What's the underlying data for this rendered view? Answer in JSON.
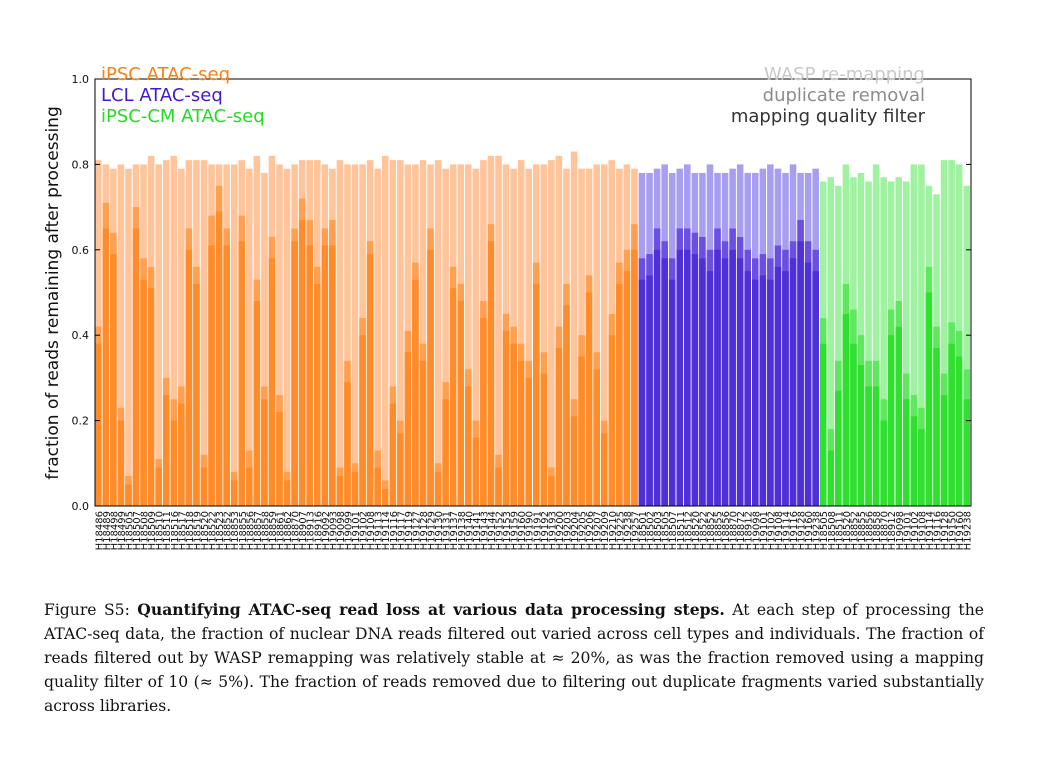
{
  "chart_data": {
    "type": "bar",
    "stacked_layers": [
      "mapping quality filter",
      "duplicate removal",
      "WASP re-mapping"
    ],
    "ylabel": "fraction of reads remaining after processing",
    "ylim": [
      0,
      1.0
    ],
    "yticks": [
      "0.0",
      "0.2",
      "0.4",
      "0.6",
      "0.8",
      "1.0"
    ],
    "grid": false,
    "legend_groups": [
      {
        "label": "iPSC ATAC-seq",
        "color": "#ff7f0e"
      },
      {
        "label": "LCL ATAC-seq",
        "color": "#3f1ccc"
      },
      {
        "label": "iPSC-CM ATAC-seq",
        "color": "#22dd22"
      }
    ],
    "legend_steps": [
      {
        "label": "WASP re-mapping",
        "color": "#c8c8c8"
      },
      {
        "label": "duplicate removal",
        "color": "#8c8c8c"
      },
      {
        "label": "mapping quality filter",
        "color": "#333333"
      }
    ],
    "groups": [
      {
        "name": "iPSC ATAC-seq",
        "colors": [
          "#ff8c2a",
          "#ff9f50",
          "#ffc49a"
        ],
        "categories": [
          "H18486",
          "H18489",
          "H18498",
          "H18499",
          "H18505",
          "H18507",
          "H18508",
          "H18509",
          "H18510",
          "H18511",
          "H18516",
          "H18517",
          "H18518",
          "H18519",
          "H18520",
          "H18522",
          "H18523",
          "H18852",
          "H18853",
          "H18855",
          "H18856",
          "H18857",
          "H18858",
          "H18859",
          "H18861",
          "H18862",
          "H18870",
          "H18907",
          "H18913",
          "H18916",
          "H19092",
          "H19093",
          "H19098",
          "H19099",
          "H19101",
          "H19102",
          "H19108",
          "H19113",
          "H19114",
          "H19116",
          "H19117",
          "H19119",
          "H19127",
          "H19128",
          "H19129",
          "H19130",
          "H19131",
          "H19137",
          "H19138",
          "H19140",
          "H19141",
          "H19143",
          "H19144",
          "H19152",
          "H19153",
          "H19159",
          "H19160",
          "H19190",
          "H19191",
          "H19192",
          "H19193",
          "H19200",
          "H19203",
          "H19204",
          "H19205",
          "H19206",
          "H19207",
          "H19209",
          "H19210",
          "H19225",
          "H19238",
          "H19257"
        ],
        "wasp": [
          0.81,
          0.8,
          0.79,
          0.8,
          0.79,
          0.8,
          0.8,
          0.82,
          0.8,
          0.81,
          0.82,
          0.79,
          0.81,
          0.81,
          0.81,
          0.8,
          0.8,
          0.8,
          0.8,
          0.81,
          0.79,
          0.82,
          0.78,
          0.82,
          0.8,
          0.79,
          0.8,
          0.81,
          0.81,
          0.81,
          0.8,
          0.79,
          0.81,
          0.8,
          0.8,
          0.8,
          0.81,
          0.79,
          0.82,
          0.81,
          0.81,
          0.8,
          0.8,
          0.81,
          0.8,
          0.81,
          0.79,
          0.8,
          0.8,
          0.8,
          0.79,
          0.81,
          0.82,
          0.82,
          0.8,
          0.79,
          0.81,
          0.79,
          0.8,
          0.8,
          0.81,
          0.82,
          0.79,
          0.83,
          0.79,
          0.79,
          0.8,
          0.8,
          0.81,
          0.79,
          0.8,
          0.79
        ],
        "dup": [
          0.42,
          0.71,
          0.64,
          0.23,
          0.07,
          0.7,
          0.58,
          0.56,
          0.11,
          0.3,
          0.25,
          0.28,
          0.65,
          0.56,
          0.12,
          0.68,
          0.75,
          0.65,
          0.08,
          0.68,
          0.13,
          0.53,
          0.28,
          0.63,
          0.26,
          0.08,
          0.65,
          0.72,
          0.67,
          0.56,
          0.65,
          0.67,
          0.09,
          0.34,
          0.1,
          0.44,
          0.62,
          0.13,
          0.06,
          0.28,
          0.2,
          0.41,
          0.57,
          0.38,
          0.65,
          0.1,
          0.29,
          0.56,
          0.52,
          0.32,
          0.2,
          0.48,
          0.66,
          0.12,
          0.45,
          0.42,
          0.38,
          0.34,
          0.57,
          0.36,
          0.09,
          0.42,
          0.52,
          0.25,
          0.4,
          0.54,
          0.36,
          0.2,
          0.45,
          0.57,
          0.6,
          0.66
        ],
        "mq": [
          0.38,
          0.65,
          0.59,
          0.2,
          0.05,
          0.65,
          0.53,
          0.51,
          0.09,
          0.26,
          0.2,
          0.24,
          0.6,
          0.52,
          0.09,
          0.61,
          0.69,
          0.61,
          0.06,
          0.62,
          0.09,
          0.48,
          0.25,
          0.58,
          0.22,
          0.06,
          0.62,
          0.67,
          0.61,
          0.52,
          0.61,
          0.61,
          0.07,
          0.29,
          0.08,
          0.4,
          0.59,
          0.09,
          0.04,
          0.24,
          0.17,
          0.36,
          0.53,
          0.34,
          0.6,
          0.08,
          0.25,
          0.51,
          0.48,
          0.28,
          0.16,
          0.44,
          0.62,
          0.09,
          0.41,
          0.38,
          0.34,
          0.3,
          0.52,
          0.31,
          0.07,
          0.37,
          0.47,
          0.21,
          0.35,
          0.5,
          0.32,
          0.17,
          0.4,
          0.52,
          0.55,
          0.6
        ]
      },
      {
        "name": "LCL ATAC-seq",
        "colors": [
          "#4f2fd6",
          "#6a4fe0",
          "#a89ef0"
        ],
        "categories": [
          "H18501",
          "H18502",
          "H18503",
          "H18505",
          "H18507",
          "H18511",
          "H18512",
          "H18520",
          "H18522",
          "H18852",
          "H18855",
          "H18856",
          "H18870",
          "H18872",
          "H18912",
          "H19098",
          "H19101",
          "H19102",
          "H19108",
          "H19114",
          "H19116",
          "H19128",
          "H19160",
          "H19238"
        ],
        "wasp": [
          0.78,
          0.78,
          0.79,
          0.8,
          0.78,
          0.79,
          0.8,
          0.78,
          0.78,
          0.8,
          0.78,
          0.78,
          0.79,
          0.8,
          0.78,
          0.78,
          0.79,
          0.8,
          0.79,
          0.78,
          0.8,
          0.78,
          0.78,
          0.79
        ],
        "dup": [
          0.58,
          0.59,
          0.65,
          0.62,
          0.58,
          0.65,
          0.65,
          0.64,
          0.63,
          0.6,
          0.65,
          0.62,
          0.65,
          0.63,
          0.6,
          0.58,
          0.59,
          0.58,
          0.61,
          0.6,
          0.62,
          0.67,
          0.62,
          0.6
        ],
        "mq": [
          0.53,
          0.54,
          0.6,
          0.58,
          0.53,
          0.6,
          0.6,
          0.59,
          0.58,
          0.55,
          0.6,
          0.58,
          0.6,
          0.58,
          0.55,
          0.53,
          0.54,
          0.53,
          0.56,
          0.55,
          0.58,
          0.62,
          0.57,
          0.55
        ]
      },
      {
        "name": "iPSC-CM ATAC-seq",
        "colors": [
          "#2fe02f",
          "#5ee85e",
          "#9ff29f"
        ],
        "categories": [
          "H18505",
          "H18508",
          "H18511",
          "H18520",
          "H18852",
          "H18855",
          "H18856",
          "H18858",
          "H18870",
          "H18912",
          "H19098",
          "H19101",
          "H19102",
          "H19108",
          "H19114",
          "H19116",
          "H19128",
          "H19150",
          "H19160",
          "H19238"
        ],
        "wasp": [
          0.76,
          0.77,
          0.75,
          0.8,
          0.77,
          0.78,
          0.76,
          0.8,
          0.77,
          0.76,
          0.77,
          0.76,
          0.8,
          0.8,
          0.75,
          0.73,
          0.81,
          0.81,
          0.8,
          0.75
        ],
        "dup": [
          0.44,
          0.18,
          0.34,
          0.52,
          0.46,
          0.4,
          0.34,
          0.34,
          0.25,
          0.46,
          0.48,
          0.31,
          0.26,
          0.23,
          0.56,
          0.42,
          0.31,
          0.43,
          0.41,
          0.32
        ],
        "mq": [
          0.38,
          0.13,
          0.27,
          0.45,
          0.38,
          0.33,
          0.28,
          0.28,
          0.2,
          0.4,
          0.42,
          0.25,
          0.21,
          0.18,
          0.5,
          0.37,
          0.26,
          0.38,
          0.35,
          0.25
        ]
      }
    ]
  },
  "caption": {
    "figure_label": "Figure S5:",
    "title": "Quantifying ATAC-seq read loss at various data processing steps.",
    "body": "At each step of processing the ATAC-seq data, the fraction of nuclear DNA reads filtered out varied across cell types and individuals. The fraction of reads filtered out by WASP remapping was relatively stable at ≈ 20%, as was the fraction removed using a mapping quality filter of 10 (≈ 5%). The fraction of reads removed due to filtering out duplicate fragments varied substantially across libraries."
  }
}
